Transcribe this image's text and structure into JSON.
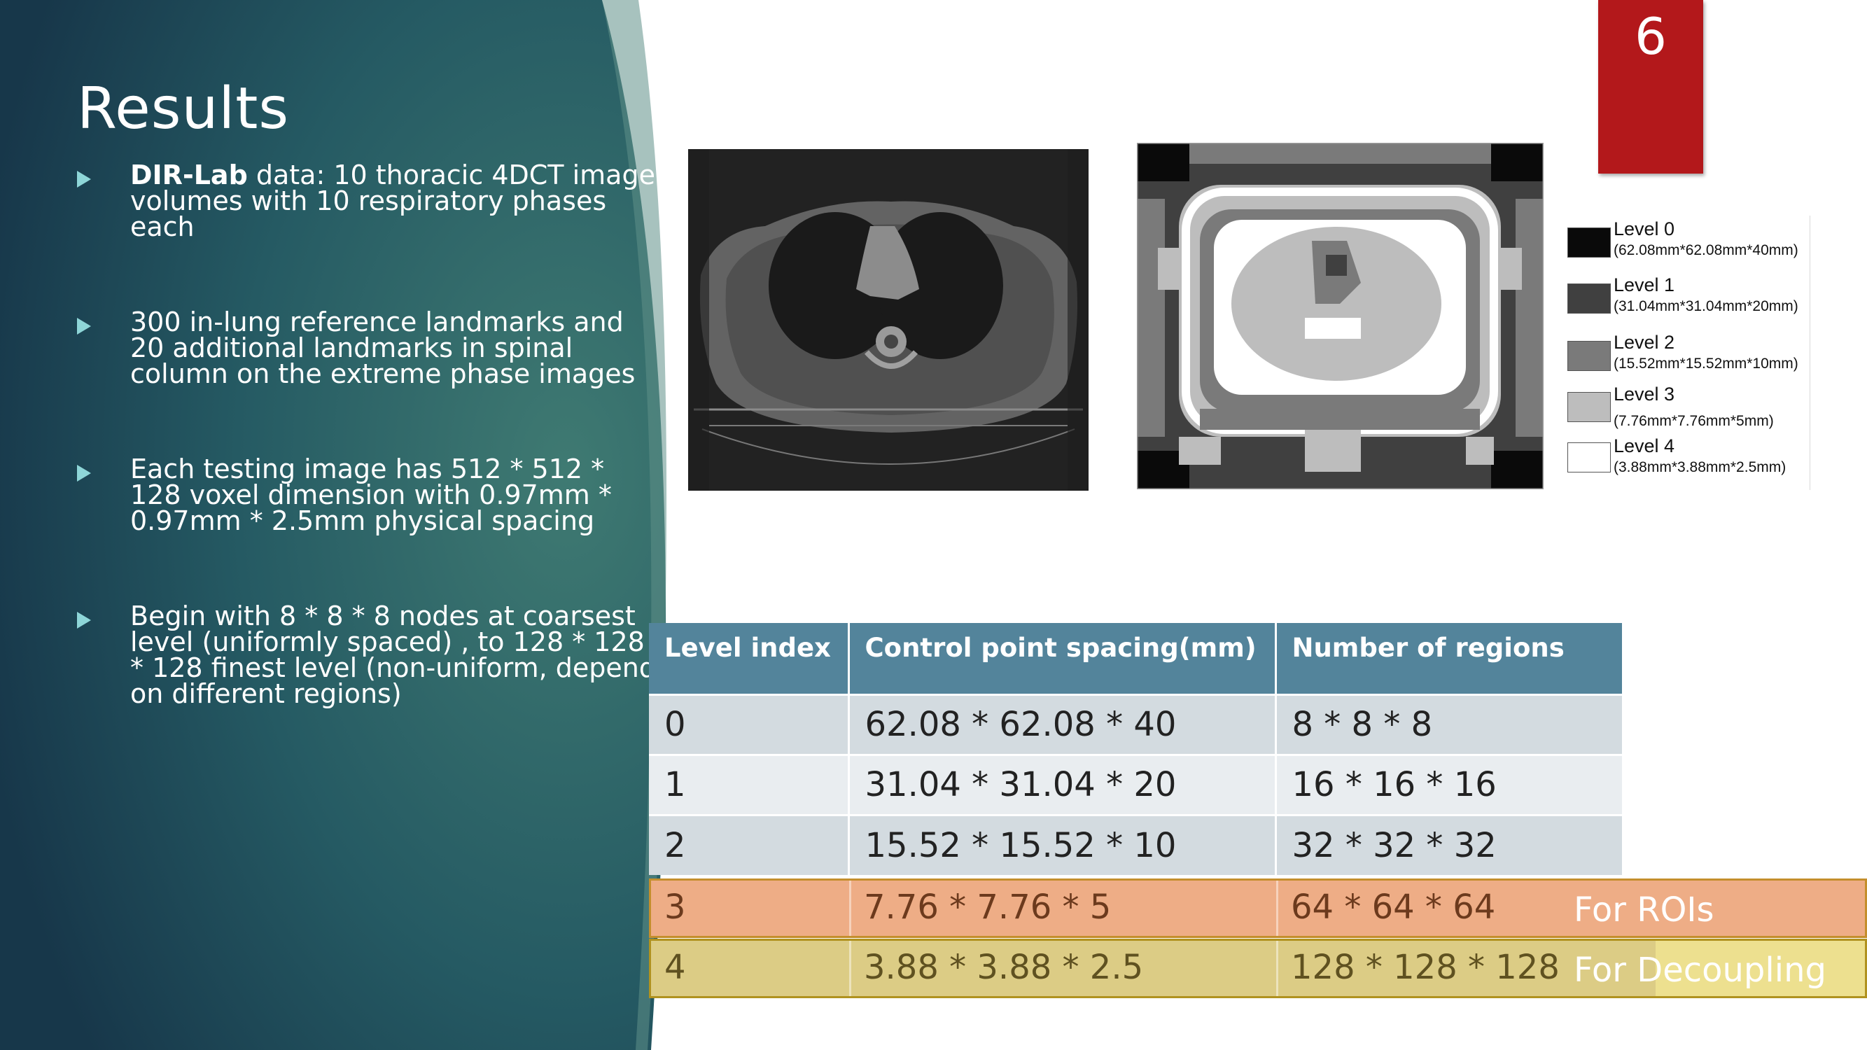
{
  "slide": {
    "title": "Results",
    "number": "6"
  },
  "bullets": [
    {
      "bold": "DIR-Lab",
      "text": " data: 10 thoracic 4DCT image volumes with 10 respiratory phases each"
    },
    {
      "bold": "",
      "text": "300 in-lung reference landmarks and 20 additional landmarks in spinal column on the extreme phase images"
    },
    {
      "bold": "",
      "text": "Each testing image has 512 * 512 * 128 voxel dimension with 0.97mm * 0.97mm * 2.5mm physical spacing"
    },
    {
      "bold": "",
      "text": "Begin with 8 * 8 * 8 nodes at coarsest level (uniformly spaced) , to 128 * 128 * 128 finest level (non-uniform, depend on different regions)"
    }
  ],
  "legend": [
    {
      "name": "Level 0",
      "size": "(62.08mm*62.08mm*40mm)",
      "color": "#0a0a0a"
    },
    {
      "name": "Level 1",
      "size": "(31.04mm*31.04mm*20mm)",
      "color": "#404040"
    },
    {
      "name": "Level 2",
      "size": "(15.52mm*15.52mm*10mm)",
      "color": "#7a7a7a"
    },
    {
      "name": "Level 3",
      "size": "(7.76mm*7.76mm*5mm)",
      "color": "#bdbdbd"
    },
    {
      "name": "Level 4",
      "size": "(3.88mm*3.88mm*2.5mm)",
      "color": "#ffffff"
    }
  ],
  "table": {
    "headers": [
      "Level index",
      "Control point spacing(mm)",
      "Number of regions"
    ],
    "rows": [
      [
        "0",
        "62.08 * 62.08 * 40",
        "8 * 8 * 8"
      ],
      [
        "1",
        "31.04 * 31.04 * 20",
        "16 * 16 * 16"
      ],
      [
        "2",
        "15.52 * 15.52 * 10",
        "32 * 32 * 32"
      ],
      [
        "3",
        "7.76 * 7.76 * 5",
        "64 * 64 * 64"
      ],
      [
        "4",
        "3.88 * 3.88 * 2.5",
        "128 * 128 * 128"
      ]
    ]
  },
  "annotations": {
    "roi": "For ROIs",
    "decoupling": "For Decoupling"
  },
  "colors": {
    "panel_dark": "#1a3a4d",
    "panel_light": "#3f7a72",
    "header": "#53849b",
    "badge": "#b3181b",
    "roi_highlight": "#eead86",
    "decoupling_highlight": "#dccc85"
  }
}
